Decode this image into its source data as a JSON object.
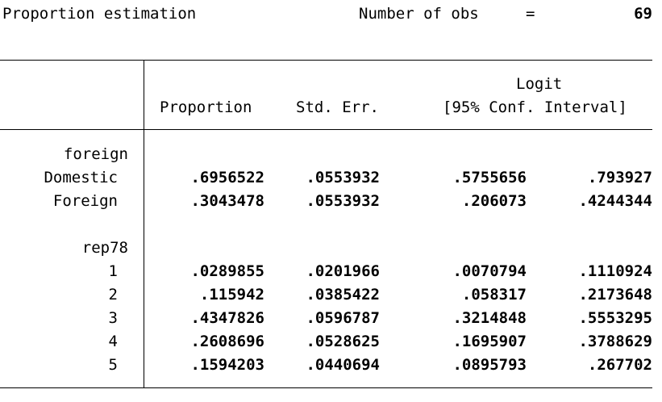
{
  "header": {
    "title": "Proportion estimation",
    "nobs_label": "Number of obs",
    "equals": "=",
    "nobs_value": "69"
  },
  "columns": {
    "proportion": "Proportion",
    "std_err": "Std. Err.",
    "logit": "Logit",
    "conf_interval": "[95% Conf. Interval]"
  },
  "groups": [
    {
      "name": "foreign",
      "rows": [
        {
          "label": "Domestic",
          "proportion": ".6956522",
          "std_err": ".0553932",
          "lower": ".5755656",
          "upper": ".793927"
        },
        {
          "label": "Foreign",
          "proportion": ".3043478",
          "std_err": ".0553932",
          "lower": ".206073",
          "upper": ".4244344"
        }
      ]
    },
    {
      "name": "rep78",
      "rows": [
        {
          "label": "1",
          "proportion": ".0289855",
          "std_err": ".0201966",
          "lower": ".0070794",
          "upper": ".1110924"
        },
        {
          "label": "2",
          "proportion": ".115942",
          "std_err": ".0385422",
          "lower": ".058317",
          "upper": ".2173648"
        },
        {
          "label": "3",
          "proportion": ".4347826",
          "std_err": ".0596787",
          "lower": ".3214848",
          "upper": ".5553295"
        },
        {
          "label": "4",
          "proportion": ".2608696",
          "std_err": ".0528625",
          "lower": ".1695907",
          "upper": ".3788629"
        },
        {
          "label": "5",
          "proportion": ".1594203",
          "std_err": ".0440694",
          "lower": ".0895793",
          "upper": ".267702"
        }
      ]
    }
  ]
}
